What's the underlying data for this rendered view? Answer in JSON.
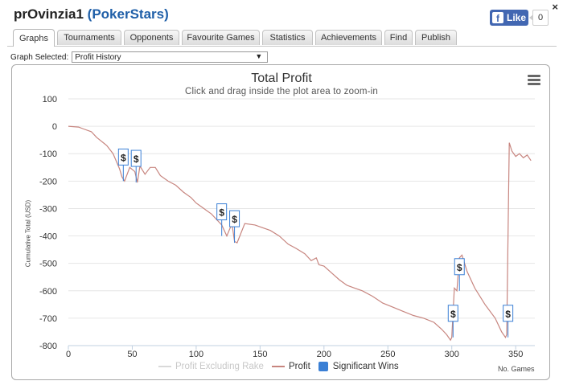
{
  "header": {
    "player": "prOvinzia1",
    "site": "PokerStars",
    "close_label": "×"
  },
  "facebook": {
    "like_label": "Like",
    "count": "0"
  },
  "tabs": [
    {
      "label": "Graphs",
      "active": true
    },
    {
      "label": "Tournaments"
    },
    {
      "label": "Opponents"
    },
    {
      "label": "Favourite Games"
    },
    {
      "label": "Statistics"
    },
    {
      "label": "Achievements"
    },
    {
      "label": "Find"
    },
    {
      "label": "Publish"
    }
  ],
  "graph_select": {
    "label": "Graph Selected:",
    "value": "Profit History"
  },
  "colors": {
    "profit": "#c7857f",
    "excl_rake": "#d9d9d9",
    "wins": "#3a7fd5",
    "grid": "#e6e6e6"
  },
  "chart_data": {
    "type": "line",
    "title": "Total Profit",
    "subtitle": "Click and drag inside the plot area to zoom-in",
    "xlabel": "No. Games",
    "ylabel": "Cumulative Total (USD)",
    "xlim": [
      0,
      365
    ],
    "ylim": [
      -800,
      100
    ],
    "xticks": [
      0,
      50,
      100,
      150,
      200,
      250,
      300,
      350
    ],
    "yticks": [
      100,
      0,
      -100,
      -200,
      -300,
      -400,
      -500,
      -600,
      -700,
      -800
    ],
    "legend": [
      "Profit Excluding Rake",
      "Profit",
      "Significant Wins"
    ],
    "legend_position": "bottom",
    "series": [
      {
        "name": "Profit",
        "x": [
          0,
          8,
          12,
          18,
          22,
          30,
          35,
          40,
          42,
          44,
          48,
          52,
          54,
          56,
          60,
          64,
          68,
          72,
          78,
          84,
          90,
          96,
          100,
          106,
          112,
          116,
          120,
          124,
          128,
          130,
          132,
          138,
          146,
          152,
          158,
          165,
          172,
          178,
          185,
          190,
          194,
          196,
          200,
          206,
          212,
          218,
          224,
          230,
          238,
          246,
          254,
          262,
          270,
          278,
          286,
          292,
          296,
          299,
          300,
          302,
          304,
          306,
          308,
          312,
          318,
          326,
          334,
          339,
          342,
          343,
          345,
          347,
          350,
          353,
          356,
          359,
          362
        ],
        "y": [
          0,
          -3,
          -10,
          -20,
          -40,
          -70,
          -100,
          -155,
          -185,
          -200,
          -150,
          -165,
          -205,
          -145,
          -175,
          -150,
          -150,
          -180,
          -200,
          -215,
          -240,
          -260,
          -280,
          -300,
          -320,
          -340,
          -360,
          -400,
          -355,
          -420,
          -425,
          -355,
          -360,
          -370,
          -380,
          -400,
          -430,
          -445,
          -465,
          -490,
          -480,
          -505,
          -510,
          -535,
          -560,
          -580,
          -590,
          -600,
          -620,
          -645,
          -660,
          -675,
          -690,
          -700,
          -715,
          -740,
          -760,
          -780,
          -770,
          -590,
          -600,
          -480,
          -470,
          -530,
          -590,
          -650,
          -700,
          -750,
          -770,
          -760,
          -60,
          -90,
          -110,
          -100,
          -115,
          -105,
          -125
        ]
      }
    ],
    "significant_wins": [
      {
        "x": 43,
        "y": -200,
        "label": "$"
      },
      {
        "x": 53,
        "y": -205,
        "label": "$"
      },
      {
        "x": 120,
        "y": -400,
        "label": "$"
      },
      {
        "x": 130,
        "y": -425,
        "label": "$"
      },
      {
        "x": 301,
        "y": -770,
        "label": "$"
      },
      {
        "x": 306,
        "y": -600,
        "label": "$"
      },
      {
        "x": 344,
        "y": -770,
        "label": "$"
      }
    ]
  }
}
